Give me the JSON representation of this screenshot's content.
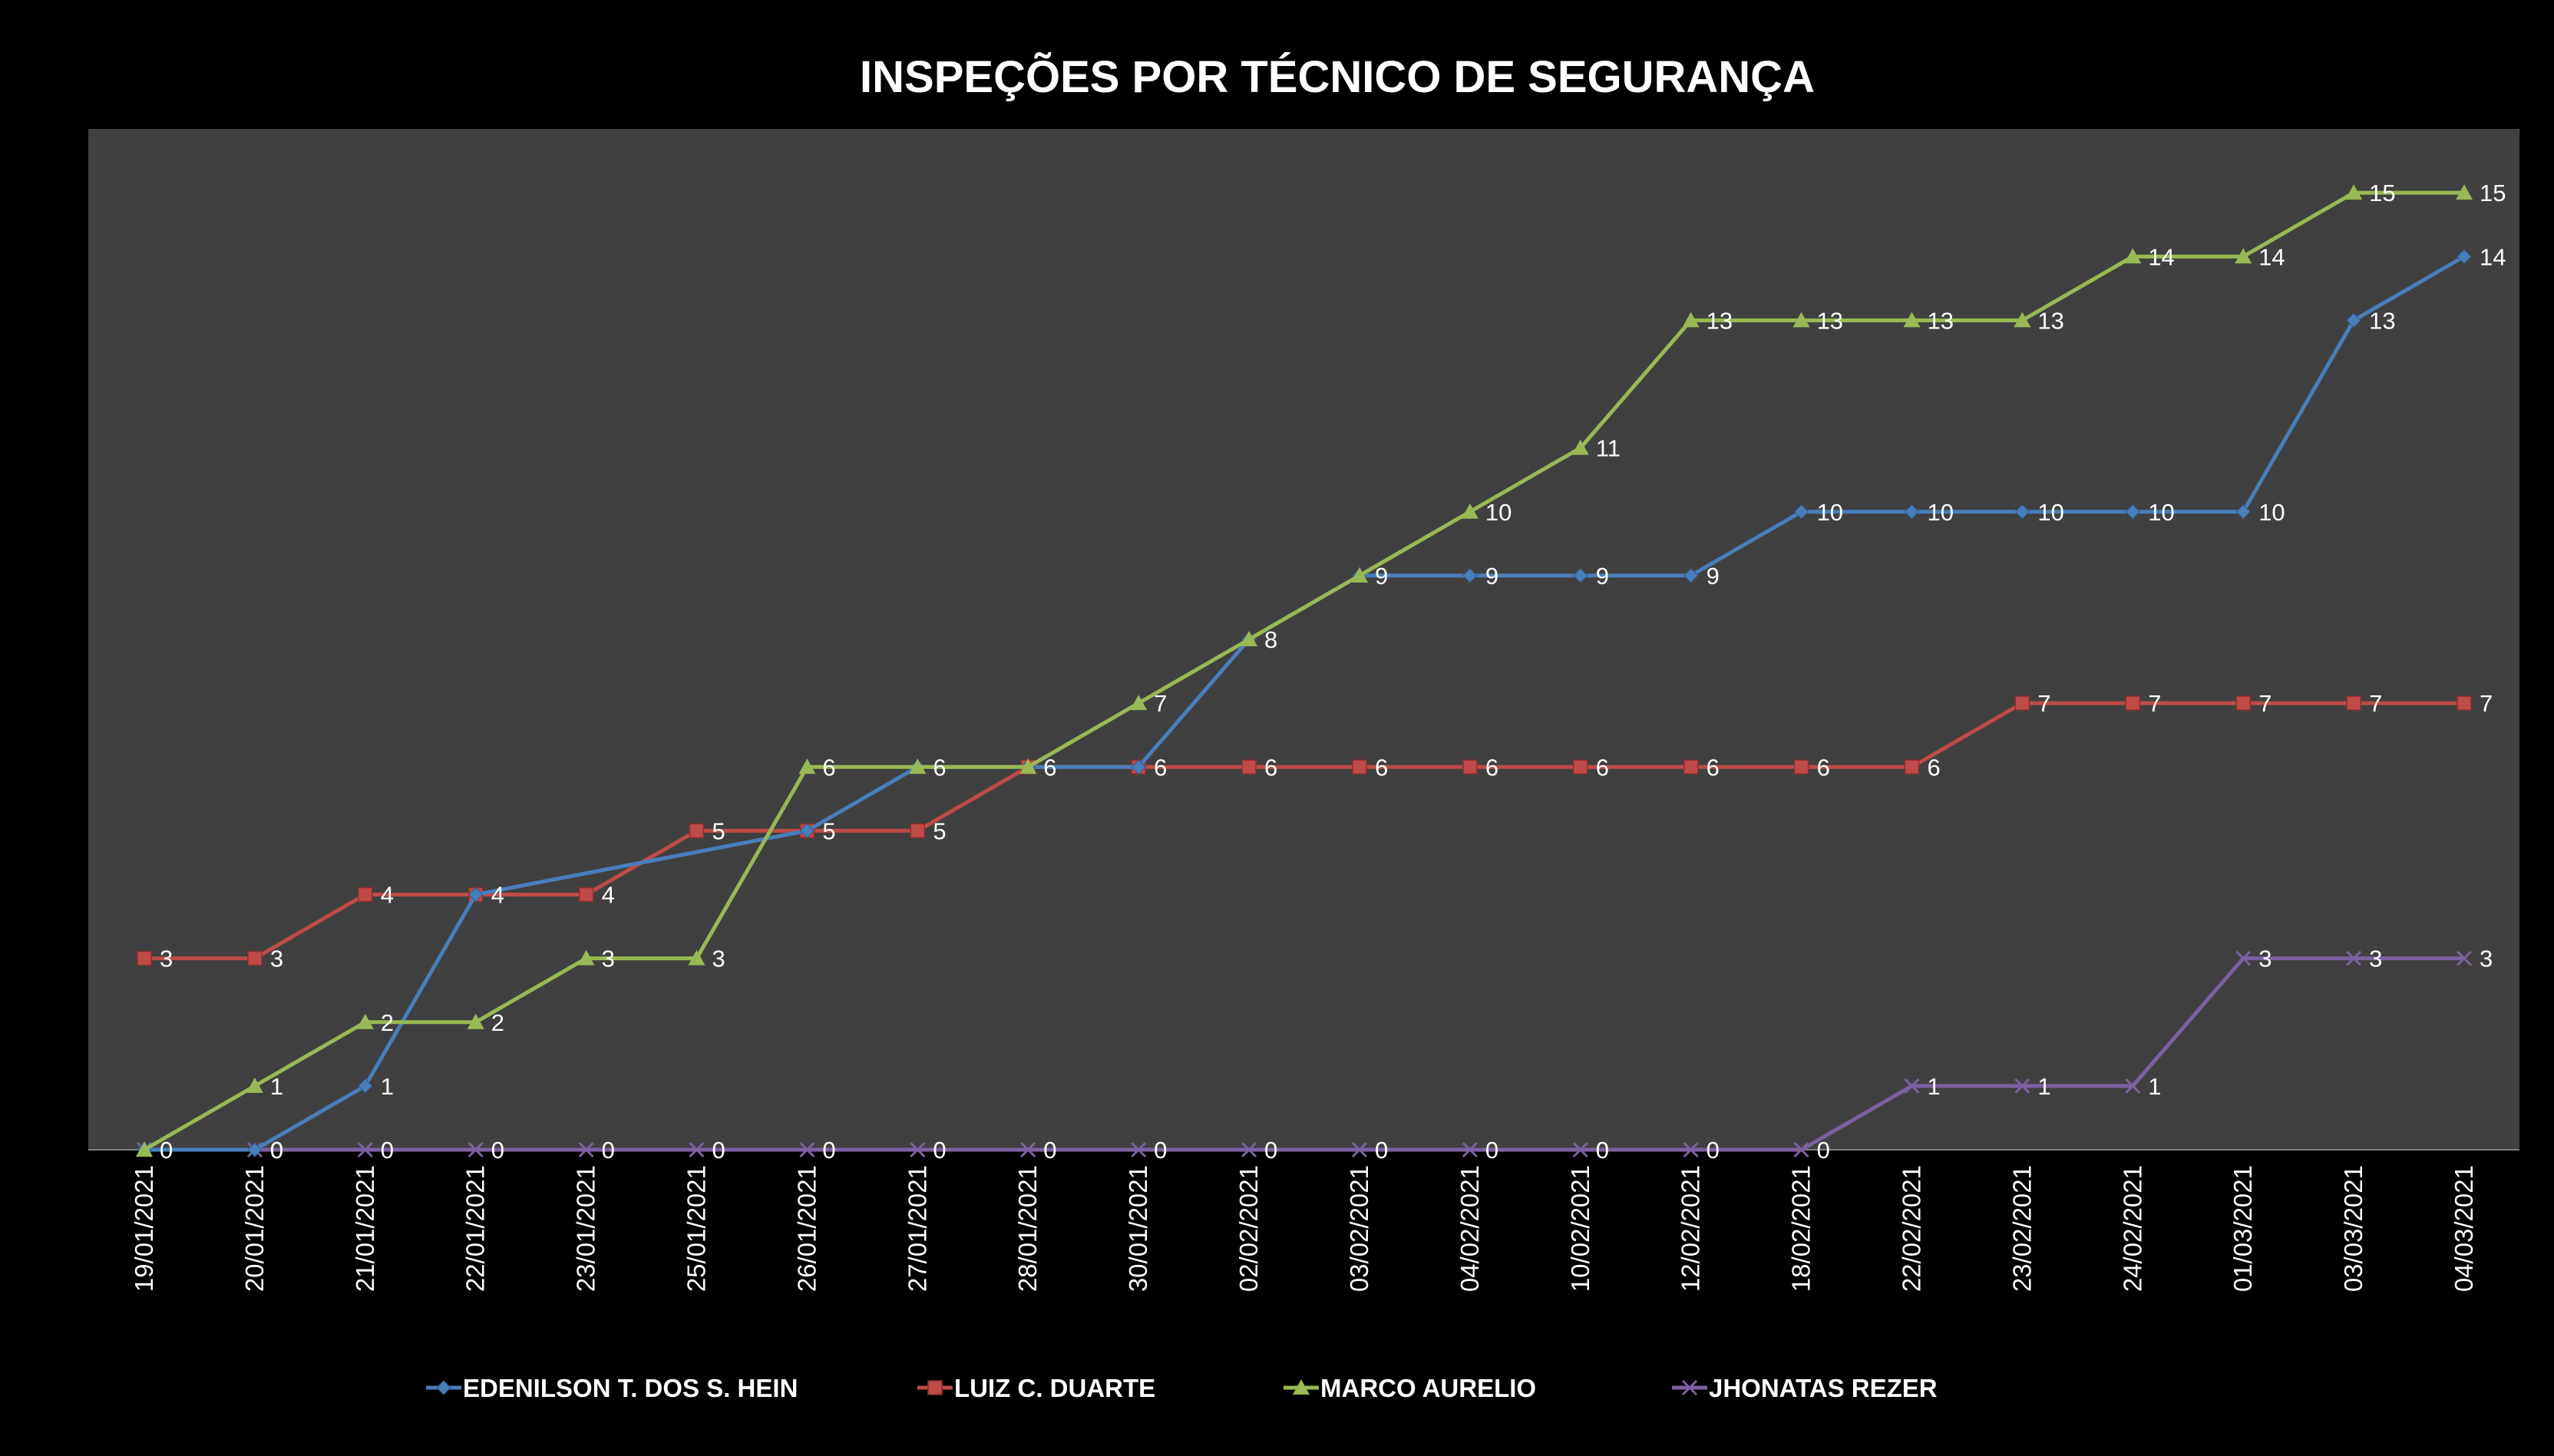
{
  "chart_data": {
    "type": "line",
    "title": "INSPEÇÕES POR TÉCNICO DE SEGURANÇA",
    "xlabel": "",
    "ylabel": "",
    "categories": [
      "19/01/2021",
      "20/01/2021",
      "21/01/2021",
      "22/01/2021",
      "23/01/2021",
      "25/01/2021",
      "26/01/2021",
      "27/01/2021",
      "28/01/2021",
      "30/01/2021",
      "02/02/2021",
      "03/02/2021",
      "04/02/2021",
      "10/02/2021",
      "12/02/2021",
      "18/02/2021",
      "22/02/2021",
      "23/02/2021",
      "24/02/2021",
      "01/03/2021",
      "03/03/2021",
      "04/03/2021"
    ],
    "ylim": [
      0,
      16
    ],
    "grid": false,
    "legend_position": "bottom",
    "plot_background": "#404040",
    "background": "#000000",
    "series": [
      {
        "name": "EDENILSON T. DOS S. HEIN",
        "color": "#4a7ebb",
        "marker": "diamond",
        "values": [
          0,
          0,
          1,
          4,
          null,
          null,
          5,
          6,
          6,
          6,
          8,
          9,
          9,
          9,
          9,
          10,
          10,
          10,
          10,
          10,
          13,
          14
        ],
        "labeled": [
          false,
          true,
          true,
          false,
          false,
          false,
          false,
          false,
          false,
          false,
          true,
          true,
          true,
          true,
          true,
          true,
          true,
          true,
          true,
          true,
          true,
          true
        ]
      },
      {
        "name": "LUIZ C. DUARTE",
        "color": "#be4b48",
        "marker": "square",
        "values": [
          3,
          3,
          4,
          4,
          4,
          5,
          5,
          5,
          6,
          6,
          6,
          6,
          6,
          6,
          6,
          6,
          6,
          7,
          7,
          7,
          7,
          7
        ],
        "labeled": [
          true,
          true,
          true,
          true,
          true,
          true,
          true,
          true,
          true,
          true,
          true,
          true,
          true,
          true,
          true,
          true,
          true,
          true,
          true,
          true,
          true,
          true
        ]
      },
      {
        "name": "MARCO AURELIO",
        "color": "#98b954",
        "marker": "triangle",
        "values": [
          0,
          1,
          2,
          2,
          3,
          3,
          6,
          6,
          6,
          7,
          8,
          9,
          10,
          11,
          13,
          13,
          13,
          13,
          14,
          14,
          15,
          15
        ],
        "labeled": [
          false,
          true,
          true,
          true,
          true,
          true,
          true,
          true,
          false,
          true,
          false,
          false,
          true,
          true,
          true,
          true,
          true,
          true,
          true,
          true,
          true,
          true
        ]
      },
      {
        "name": "JHONATAS REZER",
        "color": "#7d60a0",
        "marker": "x",
        "values": [
          0,
          0,
          0,
          0,
          0,
          0,
          0,
          0,
          0,
          0,
          0,
          0,
          0,
          0,
          0,
          0,
          1,
          1,
          1,
          3,
          3,
          3
        ],
        "labeled": [
          true,
          true,
          true,
          true,
          true,
          true,
          true,
          true,
          true,
          true,
          true,
          true,
          true,
          true,
          true,
          true,
          true,
          true,
          true,
          true,
          true,
          true
        ]
      }
    ]
  }
}
